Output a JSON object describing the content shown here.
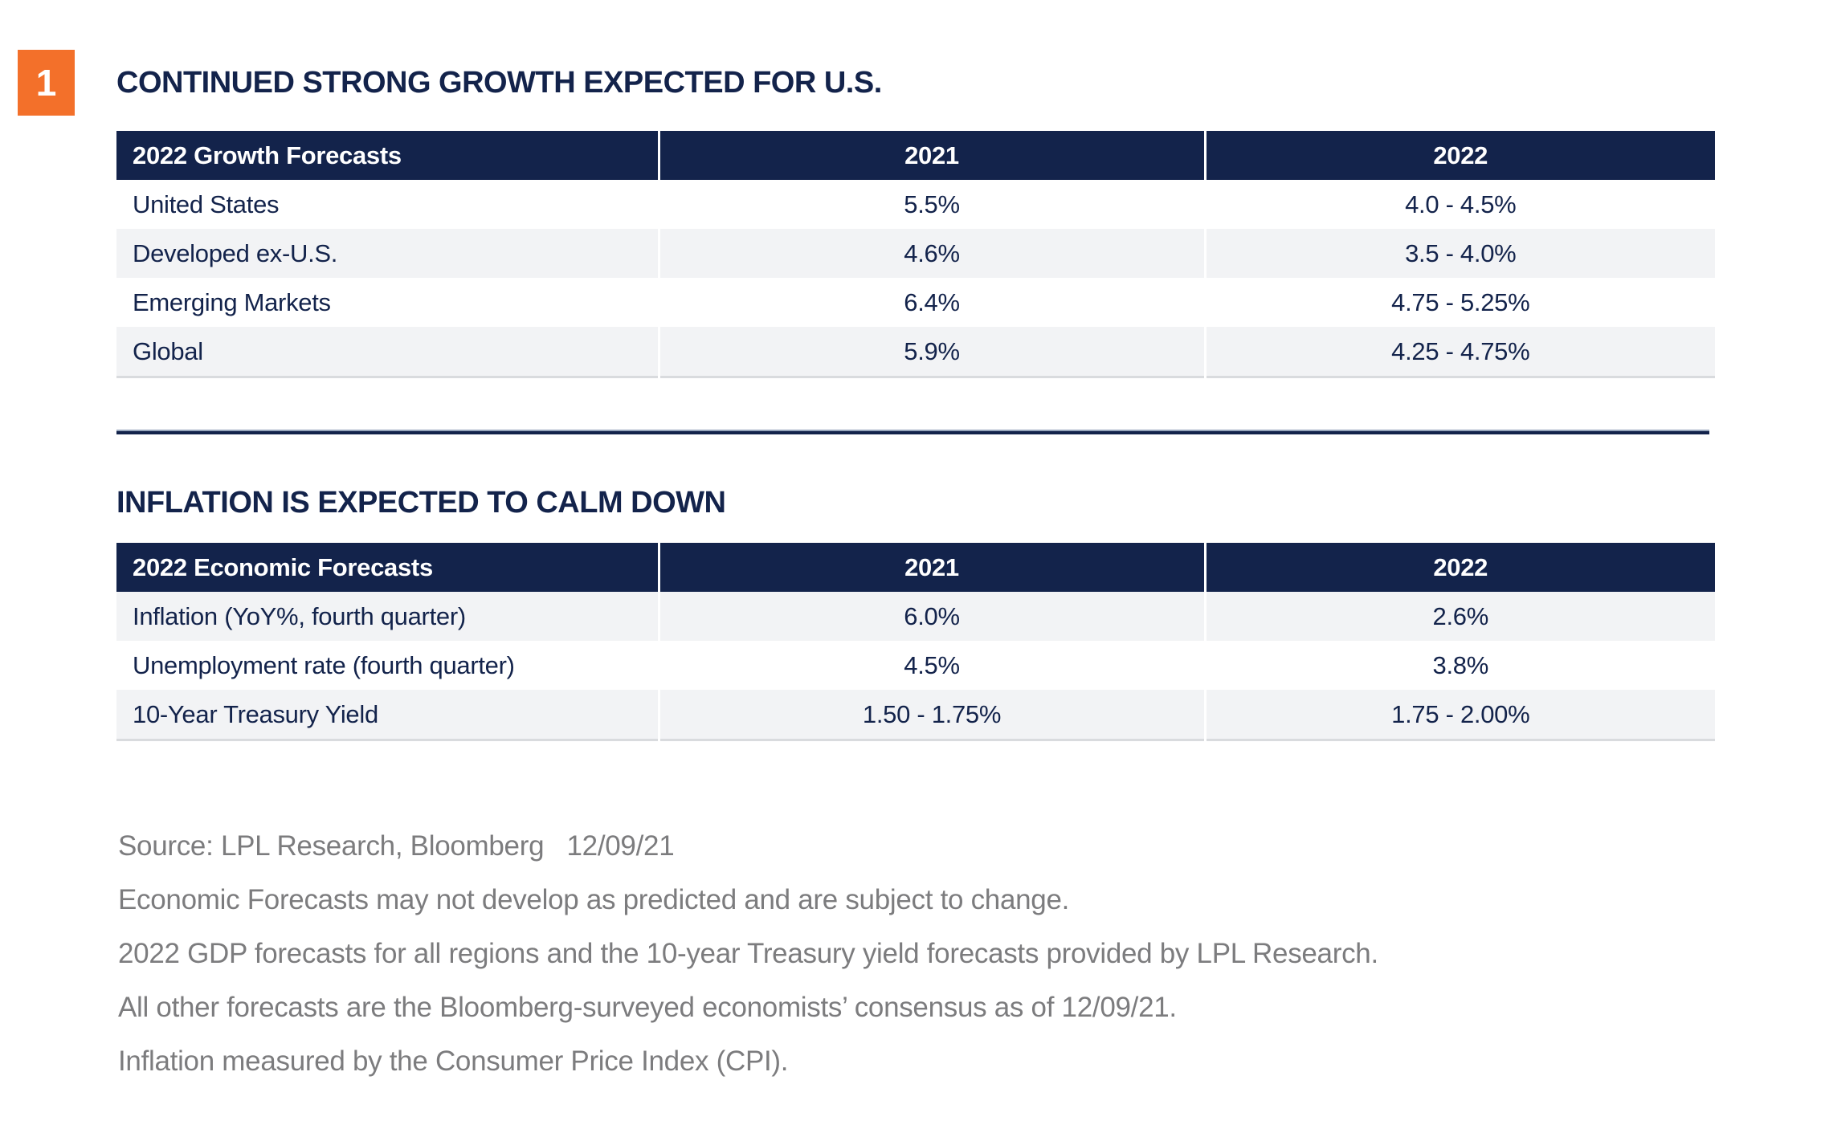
{
  "figure": {
    "number": "1",
    "accent_color": "#F3702A",
    "navy_color": "#13234B",
    "row_stripe_color": "#F2F3F5",
    "footnote_color": "#7C7C7E"
  },
  "chart_data": [
    {
      "type": "table",
      "title": "CONTINUED STRONG GROWTH EXPECTED FOR U.S.",
      "columns": [
        "2022 Growth Forecasts",
        "2021",
        "2022"
      ],
      "rows": [
        [
          "United States",
          "5.5%",
          "4.0 - 4.5%"
        ],
        [
          "Developed ex-U.S.",
          "4.6%",
          "3.5 - 4.0%"
        ],
        [
          "Emerging Markets",
          "6.4%",
          "4.75 - 5.25%"
        ],
        [
          "Global",
          "5.9%",
          "4.25 - 4.75%"
        ]
      ]
    },
    {
      "type": "table",
      "title": "INFLATION IS EXPECTED TO CALM DOWN",
      "columns": [
        "2022 Economic Forecasts",
        "2021",
        "2022"
      ],
      "rows": [
        [
          "Inflation (YoY%, fourth quarter)",
          "6.0%",
          "2.6%"
        ],
        [
          "Unemployment rate (fourth quarter)",
          "4.5%",
          "3.8%"
        ],
        [
          "10-Year Treasury Yield",
          "1.50 - 1.75%",
          "1.75 - 2.00%"
        ]
      ]
    }
  ],
  "footnotes": [
    "Source: LPL Research, Bloomberg   12/09/21",
    "Economic Forecasts may not develop as predicted and are subject to change.",
    "2022 GDP forecasts for all regions and the 10-year Treasury yield forecasts provided by LPL Research.",
    "All other forecasts are the Bloomberg-surveyed economists’ consensus as of 12/09/21.",
    "Inflation measured by the Consumer Price Index (CPI)."
  ]
}
